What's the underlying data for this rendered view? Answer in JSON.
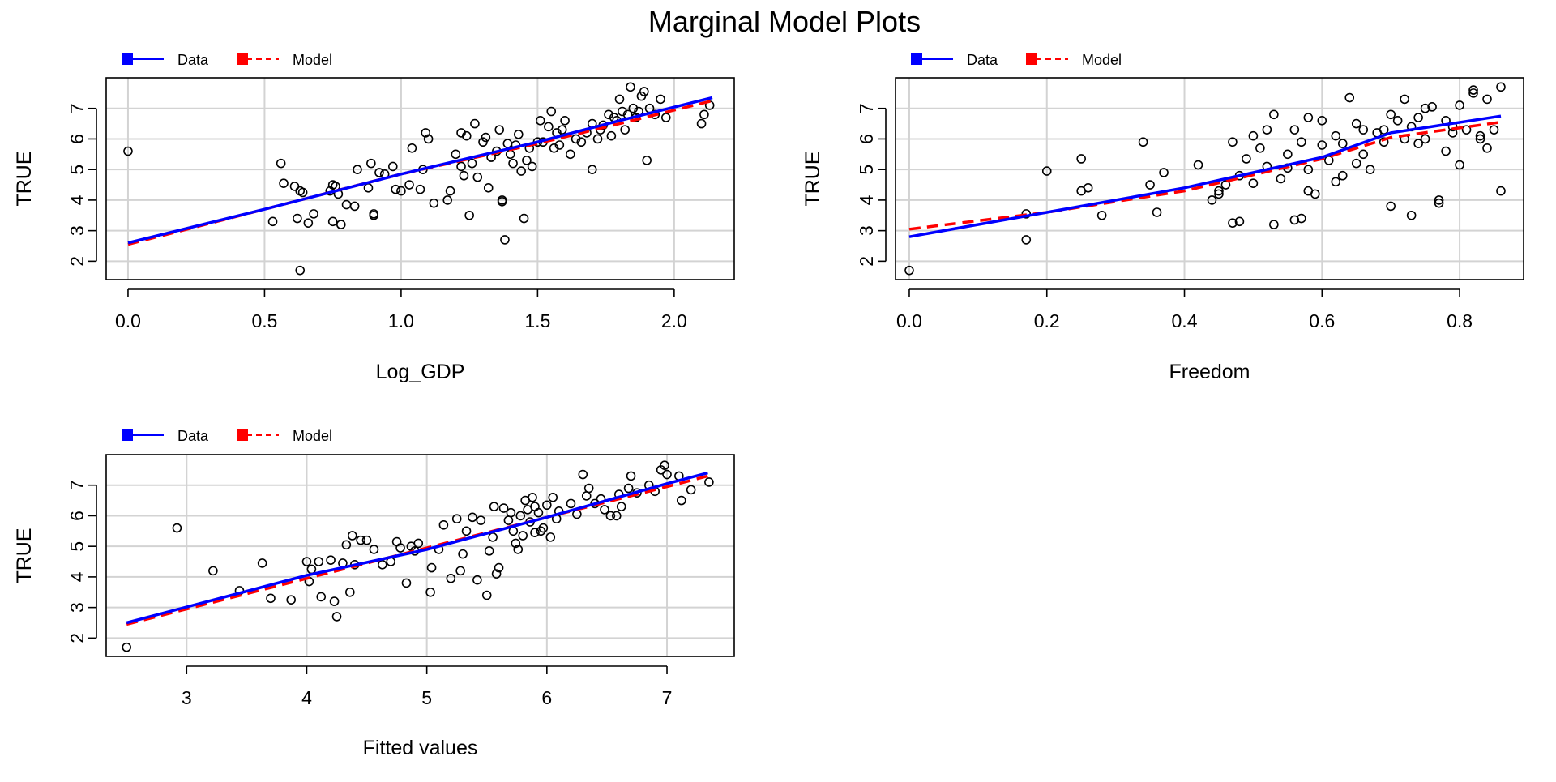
{
  "page": {
    "title": "Marginal Model Plots"
  },
  "legend": [
    {
      "label": "Data",
      "color": "#0000ff",
      "dash": "solid"
    },
    {
      "label": "Model",
      "color": "#ff0000",
      "dash": "dashed"
    }
  ],
  "chart_data": [
    {
      "type": "scatter",
      "xlabel": "Log_GDP",
      "ylabel": "TRUE",
      "xlim": [
        -0.08,
        2.22
      ],
      "ylim": [
        1.4,
        8.0
      ],
      "xticks": [
        "0.0",
        "0.5",
        "1.0",
        "1.5",
        "2.0"
      ],
      "xtick_values": [
        0,
        0.5,
        1.0,
        1.5,
        2.0
      ],
      "yticks": [
        "2",
        "3",
        "4",
        "5",
        "6",
        "7"
      ],
      "ytick_values": [
        2,
        3,
        4,
        5,
        6,
        7
      ],
      "grid": true,
      "legend_position": "top-left",
      "points": [
        [
          0.0,
          5.6
        ],
        [
          0.53,
          3.3
        ],
        [
          0.56,
          5.2
        ],
        [
          0.57,
          4.55
        ],
        [
          0.61,
          4.45
        ],
        [
          0.62,
          3.4
        ],
        [
          0.63,
          4.3
        ],
        [
          0.63,
          1.7
        ],
        [
          0.64,
          4.25
        ],
        [
          0.66,
          3.25
        ],
        [
          0.68,
          3.55
        ],
        [
          0.74,
          4.3
        ],
        [
          0.75,
          4.5
        ],
        [
          0.75,
          3.3
        ],
        [
          0.76,
          4.45
        ],
        [
          0.77,
          4.2
        ],
        [
          0.78,
          3.2
        ],
        [
          0.8,
          3.85
        ],
        [
          0.83,
          3.8
        ],
        [
          0.84,
          5.0
        ],
        [
          0.88,
          4.4
        ],
        [
          0.89,
          5.2
        ],
        [
          0.9,
          3.55
        ],
        [
          0.9,
          3.5
        ],
        [
          0.92,
          4.9
        ],
        [
          0.94,
          4.85
        ],
        [
          0.97,
          5.1
        ],
        [
          0.98,
          4.35
        ],
        [
          1.0,
          4.3
        ],
        [
          1.03,
          4.5
        ],
        [
          1.04,
          5.7
        ],
        [
          1.07,
          4.35
        ],
        [
          1.08,
          5.0
        ],
        [
          1.09,
          6.2
        ],
        [
          1.1,
          6.0
        ],
        [
          1.12,
          3.9
        ],
        [
          1.17,
          4.0
        ],
        [
          1.2,
          5.5
        ],
        [
          1.22,
          6.2
        ],
        [
          1.22,
          5.1
        ],
        [
          1.23,
          4.8
        ],
        [
          1.24,
          6.1
        ],
        [
          1.25,
          3.5
        ],
        [
          1.26,
          5.2
        ],
        [
          1.27,
          6.5
        ],
        [
          1.28,
          4.75
        ],
        [
          1.3,
          5.9
        ],
        [
          1.32,
          4.4
        ],
        [
          1.33,
          5.4
        ],
        [
          1.35,
          5.6
        ],
        [
          1.36,
          6.3
        ],
        [
          1.37,
          4.0
        ],
        [
          1.37,
          3.95
        ],
        [
          1.38,
          2.7
        ],
        [
          1.39,
          5.85
        ],
        [
          1.4,
          5.5
        ],
        [
          1.41,
          5.2
        ],
        [
          1.42,
          5.8
        ],
        [
          1.43,
          6.15
        ],
        [
          1.44,
          4.95
        ],
        [
          1.45,
          3.4
        ],
        [
          1.46,
          5.3
        ],
        [
          1.47,
          5.7
        ],
        [
          1.48,
          5.1
        ],
        [
          1.5,
          5.9
        ],
        [
          1.51,
          6.6
        ],
        [
          1.52,
          5.9
        ],
        [
          1.54,
          6.4
        ],
        [
          1.55,
          6.9
        ],
        [
          1.56,
          5.7
        ],
        [
          1.57,
          6.2
        ],
        [
          1.59,
          6.3
        ],
        [
          1.6,
          6.6
        ],
        [
          1.62,
          5.5
        ],
        [
          1.64,
          6.0
        ],
        [
          1.66,
          5.9
        ],
        [
          1.68,
          6.2
        ],
        [
          1.7,
          6.5
        ],
        [
          1.7,
          5.0
        ],
        [
          1.72,
          6.0
        ],
        [
          1.73,
          6.3
        ],
        [
          1.74,
          6.45
        ],
        [
          1.76,
          6.8
        ],
        [
          1.77,
          6.1
        ],
        [
          1.78,
          6.7
        ],
        [
          1.79,
          6.6
        ],
        [
          1.8,
          7.3
        ],
        [
          1.81,
          6.9
        ],
        [
          1.82,
          6.3
        ],
        [
          1.83,
          6.8
        ],
        [
          1.84,
          7.7
        ],
        [
          1.85,
          7.0
        ],
        [
          1.86,
          6.7
        ],
        [
          1.87,
          6.9
        ],
        [
          1.88,
          7.4
        ],
        [
          1.89,
          7.55
        ],
        [
          1.9,
          5.3
        ],
        [
          1.91,
          7.0
        ],
        [
          1.93,
          6.8
        ],
        [
          1.95,
          7.3
        ],
        [
          1.97,
          6.7
        ],
        [
          2.1,
          6.5
        ],
        [
          2.11,
          6.8
        ],
        [
          2.13,
          7.1
        ],
        [
          1.58,
          5.8
        ],
        [
          1.31,
          6.05
        ],
        [
          1.18,
          4.3
        ]
      ],
      "data_line": [
        [
          0.0,
          2.6
        ],
        [
          0.5,
          3.7
        ],
        [
          1.0,
          4.85
        ],
        [
          1.5,
          5.9
        ],
        [
          1.8,
          6.6
        ],
        [
          2.14,
          7.35
        ]
      ],
      "model_line": [
        [
          0.0,
          2.55
        ],
        [
          0.5,
          3.7
        ],
        [
          1.0,
          4.85
        ],
        [
          1.5,
          5.85
        ],
        [
          1.8,
          6.5
        ],
        [
          2.14,
          7.25
        ]
      ]
    },
    {
      "type": "scatter",
      "xlabel": "Freedom",
      "ylabel": "TRUE",
      "xlim": [
        -0.02,
        0.893
      ],
      "ylim": [
        1.4,
        8.0
      ],
      "xticks": [
        "0.0",
        "0.2",
        "0.4",
        "0.6",
        "0.8"
      ],
      "xtick_values": [
        0,
        0.2,
        0.4,
        0.6,
        0.8
      ],
      "yticks": [
        "2",
        "3",
        "4",
        "5",
        "6",
        "7"
      ],
      "ytick_values": [
        2,
        3,
        4,
        5,
        6,
        7
      ],
      "grid": true,
      "legend_position": "top-left",
      "points": [
        [
          0.0,
          1.7
        ],
        [
          0.17,
          3.55
        ],
        [
          0.17,
          2.7
        ],
        [
          0.2,
          4.95
        ],
        [
          0.25,
          5.35
        ],
        [
          0.25,
          4.3
        ],
        [
          0.26,
          4.4
        ],
        [
          0.28,
          3.5
        ],
        [
          0.34,
          5.9
        ],
        [
          0.35,
          4.5
        ],
        [
          0.36,
          3.6
        ],
        [
          0.37,
          4.9
        ],
        [
          0.42,
          5.15
        ],
        [
          0.44,
          4.0
        ],
        [
          0.45,
          4.3
        ],
        [
          0.46,
          4.5
        ],
        [
          0.47,
          5.9
        ],
        [
          0.47,
          3.25
        ],
        [
          0.48,
          3.3
        ],
        [
          0.48,
          4.8
        ],
        [
          0.49,
          5.35
        ],
        [
          0.5,
          4.55
        ],
        [
          0.51,
          5.7
        ],
        [
          0.52,
          6.3
        ],
        [
          0.52,
          5.1
        ],
        [
          0.53,
          3.2
        ],
        [
          0.53,
          6.8
        ],
        [
          0.54,
          4.7
        ],
        [
          0.55,
          5.5
        ],
        [
          0.56,
          6.3
        ],
        [
          0.56,
          3.35
        ],
        [
          0.57,
          3.4
        ],
        [
          0.57,
          5.9
        ],
        [
          0.58,
          4.3
        ],
        [
          0.58,
          6.7
        ],
        [
          0.59,
          4.2
        ],
        [
          0.6,
          5.8
        ],
        [
          0.61,
          5.3
        ],
        [
          0.62,
          4.6
        ],
        [
          0.62,
          6.1
        ],
        [
          0.63,
          4.8
        ],
        [
          0.63,
          5.85
        ],
        [
          0.64,
          7.35
        ],
        [
          0.65,
          6.5
        ],
        [
          0.65,
          5.2
        ],
        [
          0.66,
          6.3
        ],
        [
          0.67,
          5.0
        ],
        [
          0.68,
          6.2
        ],
        [
          0.69,
          5.9
        ],
        [
          0.7,
          6.8
        ],
        [
          0.7,
          3.8
        ],
        [
          0.71,
          6.6
        ],
        [
          0.72,
          7.3
        ],
        [
          0.72,
          6.0
        ],
        [
          0.73,
          3.5
        ],
        [
          0.73,
          6.4
        ],
        [
          0.74,
          6.7
        ],
        [
          0.75,
          7.0
        ],
        [
          0.75,
          6.0
        ],
        [
          0.76,
          7.05
        ],
        [
          0.77,
          4.0
        ],
        [
          0.77,
          3.9
        ],
        [
          0.78,
          6.6
        ],
        [
          0.78,
          5.6
        ],
        [
          0.79,
          6.4
        ],
        [
          0.8,
          7.1
        ],
        [
          0.8,
          5.15
        ],
        [
          0.81,
          6.3
        ],
        [
          0.82,
          7.5
        ],
        [
          0.82,
          7.6
        ],
        [
          0.83,
          6.0
        ],
        [
          0.83,
          6.1
        ],
        [
          0.84,
          5.7
        ],
        [
          0.84,
          7.3
        ],
        [
          0.85,
          6.3
        ],
        [
          0.86,
          7.7
        ],
        [
          0.86,
          4.3
        ],
        [
          0.5,
          6.1
        ],
        [
          0.55,
          5.05
        ],
        [
          0.6,
          6.6
        ],
        [
          0.66,
          5.5
        ],
        [
          0.69,
          6.3
        ],
        [
          0.74,
          5.85
        ],
        [
          0.79,
          6.2
        ],
        [
          0.45,
          4.2
        ],
        [
          0.58,
          5.0
        ]
      ],
      "data_line": [
        [
          0.0,
          2.8
        ],
        [
          0.2,
          3.6
        ],
        [
          0.4,
          4.4
        ],
        [
          0.6,
          5.4
        ],
        [
          0.7,
          6.2
        ],
        [
          0.86,
          6.75
        ]
      ],
      "model_line": [
        [
          0.0,
          3.05
        ],
        [
          0.2,
          3.6
        ],
        [
          0.4,
          4.3
        ],
        [
          0.6,
          5.35
        ],
        [
          0.7,
          6.05
        ],
        [
          0.86,
          6.55
        ]
      ]
    },
    {
      "type": "scatter",
      "xlabel": "Fitted values",
      "ylabel": "TRUE",
      "xlim": [
        2.33,
        7.56
      ],
      "ylim": [
        1.4,
        8.0
      ],
      "xticks": [
        "3",
        "4",
        "5",
        "6",
        "7"
      ],
      "xtick_values": [
        3,
        4,
        5,
        6,
        7
      ],
      "yticks": [
        "2",
        "3",
        "4",
        "5",
        "6",
        "7"
      ],
      "ytick_values": [
        2,
        3,
        4,
        5,
        6,
        7
      ],
      "grid": true,
      "legend_position": "top-left",
      "points": [
        [
          2.5,
          1.7
        ],
        [
          2.92,
          5.6
        ],
        [
          3.22,
          4.2
        ],
        [
          3.44,
          3.55
        ],
        [
          3.63,
          4.45
        ],
        [
          3.7,
          3.3
        ],
        [
          3.87,
          3.25
        ],
        [
          4.0,
          4.5
        ],
        [
          4.02,
          3.85
        ],
        [
          4.04,
          4.25
        ],
        [
          4.1,
          4.5
        ],
        [
          4.12,
          3.35
        ],
        [
          4.2,
          4.55
        ],
        [
          4.23,
          3.2
        ],
        [
          4.25,
          2.7
        ],
        [
          4.3,
          4.45
        ],
        [
          4.33,
          5.05
        ],
        [
          4.36,
          3.5
        ],
        [
          4.38,
          5.35
        ],
        [
          4.4,
          4.4
        ],
        [
          4.45,
          5.2
        ],
        [
          4.5,
          5.2
        ],
        [
          4.56,
          4.9
        ],
        [
          4.63,
          4.4
        ],
        [
          4.7,
          4.5
        ],
        [
          4.75,
          5.15
        ],
        [
          4.78,
          4.95
        ],
        [
          4.83,
          3.8
        ],
        [
          4.87,
          5.0
        ],
        [
          4.9,
          4.85
        ],
        [
          4.93,
          5.1
        ],
        [
          5.03,
          3.5
        ],
        [
          5.04,
          4.3
        ],
        [
          5.1,
          4.9
        ],
        [
          5.14,
          5.7
        ],
        [
          5.2,
          3.95
        ],
        [
          5.25,
          5.9
        ],
        [
          5.28,
          4.2
        ],
        [
          5.3,
          4.75
        ],
        [
          5.33,
          5.5
        ],
        [
          5.38,
          5.95
        ],
        [
          5.42,
          3.9
        ],
        [
          5.45,
          5.85
        ],
        [
          5.5,
          3.4
        ],
        [
          5.52,
          4.85
        ],
        [
          5.55,
          5.3
        ],
        [
          5.56,
          6.3
        ],
        [
          5.58,
          4.1
        ],
        [
          5.6,
          4.3
        ],
        [
          5.64,
          6.25
        ],
        [
          5.68,
          5.85
        ],
        [
          5.72,
          5.5
        ],
        [
          5.74,
          5.1
        ],
        [
          5.76,
          4.9
        ],
        [
          5.78,
          6.0
        ],
        [
          5.8,
          5.35
        ],
        [
          5.82,
          6.5
        ],
        [
          5.84,
          6.2
        ],
        [
          5.86,
          5.8
        ],
        [
          5.88,
          6.6
        ],
        [
          5.9,
          6.3
        ],
        [
          5.93,
          6.1
        ],
        [
          5.95,
          5.5
        ],
        [
          5.97,
          5.6
        ],
        [
          6.0,
          6.35
        ],
        [
          6.03,
          5.3
        ],
        [
          6.05,
          6.6
        ],
        [
          6.08,
          5.9
        ],
        [
          6.1,
          6.15
        ],
        [
          6.2,
          6.4
        ],
        [
          6.25,
          6.05
        ],
        [
          6.3,
          7.35
        ],
        [
          6.33,
          6.65
        ],
        [
          6.35,
          6.9
        ],
        [
          6.4,
          6.4
        ],
        [
          6.48,
          6.2
        ],
        [
          6.53,
          6.0
        ],
        [
          6.58,
          6.0
        ],
        [
          6.6,
          6.7
        ],
        [
          6.62,
          6.3
        ],
        [
          6.68,
          6.9
        ],
        [
          6.7,
          7.3
        ],
        [
          6.75,
          6.75
        ],
        [
          6.85,
          7.0
        ],
        [
          6.9,
          6.8
        ],
        [
          6.95,
          7.5
        ],
        [
          6.98,
          7.65
        ],
        [
          7.0,
          7.35
        ],
        [
          7.1,
          7.3
        ],
        [
          7.12,
          6.5
        ],
        [
          7.2,
          6.85
        ],
        [
          7.35,
          7.1
        ],
        [
          5.7,
          6.1
        ],
        [
          5.9,
          5.45
        ],
        [
          6.45,
          6.55
        ]
      ],
      "data_line": [
        [
          2.5,
          2.5
        ],
        [
          4.0,
          4.05
        ],
        [
          5.0,
          4.9
        ],
        [
          6.0,
          5.95
        ],
        [
          7.0,
          7.05
        ],
        [
          7.34,
          7.4
        ]
      ],
      "model_line": [
        [
          2.5,
          2.45
        ],
        [
          4.0,
          3.95
        ],
        [
          5.0,
          4.95
        ],
        [
          6.0,
          5.95
        ],
        [
          7.0,
          6.95
        ],
        [
          7.34,
          7.3
        ]
      ]
    }
  ]
}
